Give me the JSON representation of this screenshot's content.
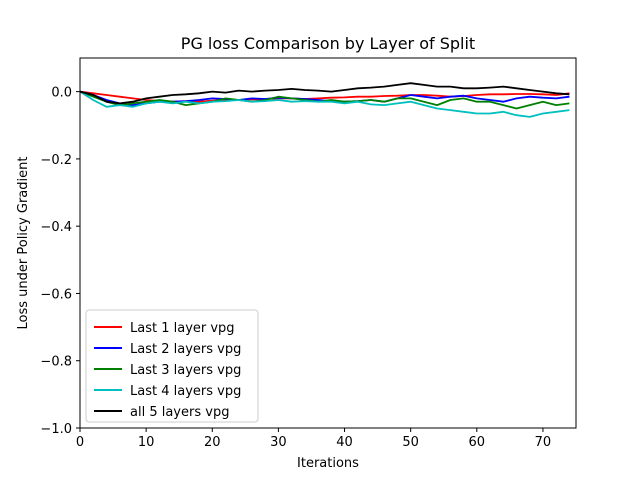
{
  "chart_data": {
    "type": "line",
    "title": "PG loss Comparison by Layer of Split",
    "xlabel": "Iterations",
    "ylabel": "Loss under Policy Gradient",
    "xlim": [
      0,
      75
    ],
    "ylim": [
      -1.0,
      0.1
    ],
    "xticks": [
      0,
      10,
      20,
      30,
      40,
      50,
      60,
      70
    ],
    "yticks": [
      0.0,
      -0.2,
      -0.4,
      -0.6,
      -0.8,
      -1.0
    ],
    "xtick_labels": [
      "0",
      "10",
      "20",
      "30",
      "40",
      "50",
      "60",
      "70"
    ],
    "ytick_labels": [
      "0.0",
      "−0.2",
      "−0.4",
      "−0.6",
      "−0.8",
      "−1.0"
    ],
    "grid": false,
    "legend_position": "lower-left",
    "series": [
      {
        "name": "Last 1 layer vpg",
        "color": "#ff0000",
        "x": [
          0,
          2,
          4,
          6,
          8,
          10,
          12,
          14,
          16,
          18,
          20,
          22,
          24,
          26,
          28,
          30,
          32,
          34,
          36,
          38,
          40,
          42,
          44,
          46,
          48,
          50,
          52,
          54,
          56,
          58,
          60,
          62,
          64,
          66,
          68,
          70,
          72,
          74
        ],
        "values": [
          0,
          -0.005,
          -0.01,
          -0.015,
          -0.02,
          -0.025,
          -0.028,
          -0.03,
          -0.028,
          -0.03,
          -0.027,
          -0.025,
          -0.025,
          -0.023,
          -0.022,
          -0.02,
          -0.02,
          -0.022,
          -0.02,
          -0.018,
          -0.017,
          -0.015,
          -0.015,
          -0.013,
          -0.012,
          -0.01,
          -0.01,
          -0.012,
          -0.015,
          -0.013,
          -0.01,
          -0.008,
          -0.008,
          -0.007,
          -0.007,
          -0.008,
          -0.01,
          -0.005
        ]
      },
      {
        "name": "Last 2 layers vpg",
        "color": "#0000ff",
        "x": [
          0,
          2,
          4,
          6,
          8,
          10,
          12,
          14,
          16,
          18,
          20,
          22,
          24,
          26,
          28,
          30,
          32,
          34,
          36,
          38,
          40,
          42,
          44,
          46,
          48,
          50,
          52,
          54,
          56,
          58,
          60,
          62,
          64,
          66,
          68,
          70,
          72,
          74
        ],
        "values": [
          0,
          -0.01,
          -0.025,
          -0.035,
          -0.04,
          -0.035,
          -0.03,
          -0.03,
          -0.028,
          -0.025,
          -0.02,
          -0.022,
          -0.025,
          -0.02,
          -0.022,
          -0.018,
          -0.02,
          -0.022,
          -0.025,
          -0.028,
          -0.03,
          -0.028,
          -0.025,
          -0.03,
          -0.02,
          -0.01,
          -0.015,
          -0.02,
          -0.015,
          -0.012,
          -0.02,
          -0.025,
          -0.03,
          -0.02,
          -0.015,
          -0.018,
          -0.02,
          -0.015
        ]
      },
      {
        "name": "Last 3 layers vpg",
        "color": "#008000",
        "x": [
          0,
          2,
          4,
          6,
          8,
          10,
          12,
          14,
          16,
          18,
          20,
          22,
          24,
          26,
          28,
          30,
          32,
          34,
          36,
          38,
          40,
          42,
          44,
          46,
          48,
          50,
          52,
          54,
          56,
          58,
          60,
          62,
          64,
          66,
          68,
          70,
          72,
          74
        ],
        "values": [
          0,
          -0.015,
          -0.03,
          -0.04,
          -0.035,
          -0.03,
          -0.025,
          -0.03,
          -0.04,
          -0.035,
          -0.03,
          -0.02,
          -0.025,
          -0.03,
          -0.025,
          -0.015,
          -0.02,
          -0.025,
          -0.03,
          -0.025,
          -0.03,
          -0.028,
          -0.025,
          -0.03,
          -0.02,
          -0.02,
          -0.03,
          -0.04,
          -0.025,
          -0.02,
          -0.03,
          -0.03,
          -0.04,
          -0.05,
          -0.04,
          -0.03,
          -0.04,
          -0.035
        ]
      },
      {
        "name": "Last 4 layers vpg",
        "color": "#00bfbf",
        "x": [
          0,
          2,
          4,
          6,
          8,
          10,
          12,
          14,
          16,
          18,
          20,
          22,
          24,
          26,
          28,
          30,
          32,
          34,
          36,
          38,
          40,
          42,
          44,
          46,
          48,
          50,
          52,
          54,
          56,
          58,
          60,
          62,
          64,
          66,
          68,
          70,
          72,
          74
        ],
        "values": [
          0,
          -0.025,
          -0.045,
          -0.04,
          -0.045,
          -0.035,
          -0.03,
          -0.035,
          -0.03,
          -0.035,
          -0.03,
          -0.028,
          -0.025,
          -0.03,
          -0.028,
          -0.025,
          -0.03,
          -0.028,
          -0.03,
          -0.03,
          -0.035,
          -0.03,
          -0.038,
          -0.04,
          -0.035,
          -0.03,
          -0.04,
          -0.05,
          -0.055,
          -0.06,
          -0.065,
          -0.065,
          -0.06,
          -0.07,
          -0.075,
          -0.065,
          -0.06,
          -0.055
        ]
      },
      {
        "name": "all 5 layers vpg",
        "color": "#000000",
        "x": [
          0,
          2,
          4,
          6,
          8,
          10,
          12,
          14,
          16,
          18,
          20,
          22,
          24,
          26,
          28,
          30,
          32,
          34,
          36,
          38,
          40,
          42,
          44,
          46,
          48,
          50,
          52,
          54,
          56,
          58,
          60,
          62,
          64,
          66,
          68,
          70,
          72,
          74
        ],
        "values": [
          0,
          -0.01,
          -0.03,
          -0.035,
          -0.03,
          -0.02,
          -0.015,
          -0.01,
          -0.008,
          -0.005,
          0,
          -0.003,
          0.003,
          0,
          0.003,
          0.005,
          0.008,
          0.005,
          0.003,
          0,
          0.005,
          0.01,
          0.012,
          0.015,
          0.02,
          0.025,
          0.02,
          0.015,
          0.015,
          0.01,
          0.01,
          0.012,
          0.015,
          0.01,
          0.005,
          0,
          -0.005,
          -0.008
        ]
      }
    ]
  }
}
